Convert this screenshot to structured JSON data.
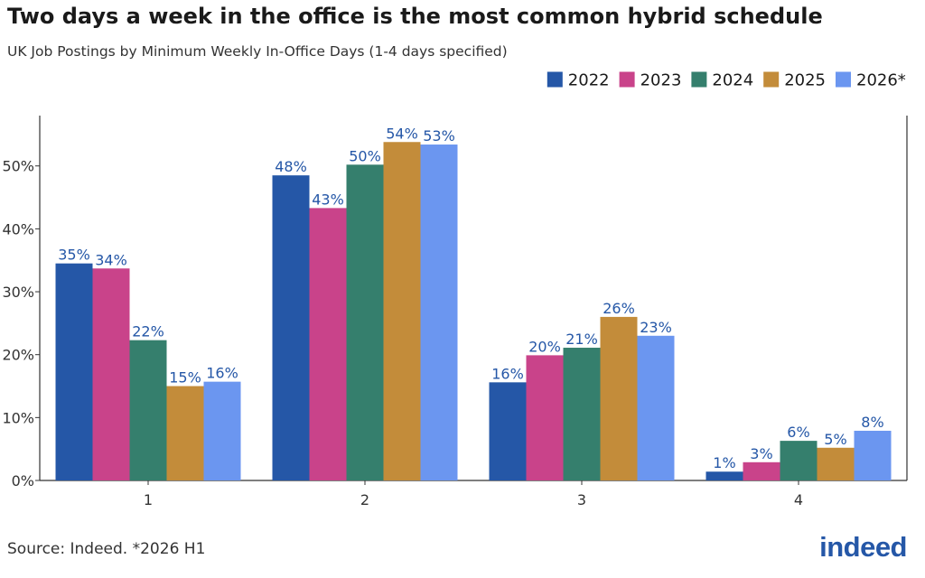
{
  "header": {
    "title": "Two days a week in the office is the most common hybrid schedule",
    "subtitle": "UK Job Postings by Minimum Weekly In-Office Days (1-4 days specified)"
  },
  "footer": {
    "source": "Source: Indeed. *2026 H1",
    "logo_text": "indeed"
  },
  "chart_data": {
    "type": "bar",
    "title": "Two days a week in the office is the most common hybrid schedule",
    "subtitle": "UK Job Postings by Minimum Weekly In-Office Days (1-4 days specified)",
    "xlabel": "",
    "ylabel": "",
    "categories": [
      "1",
      "2",
      "3",
      "4"
    ],
    "ylim": [
      0,
      58
    ],
    "yticks": [
      0,
      10,
      20,
      30,
      40,
      50
    ],
    "ytick_labels": [
      "0%",
      "10%",
      "20%",
      "30%",
      "40%",
      "50%"
    ],
    "grid": false,
    "legend_position": "top-right",
    "series": [
      {
        "name": "2022",
        "color": "#2557a7",
        "values": [
          34.5,
          48.5,
          15.6,
          1.4
        ],
        "labels": [
          "35%",
          "48%",
          "16%",
          "1%"
        ]
      },
      {
        "name": "2023",
        "color": "#c9438a",
        "values": [
          33.7,
          43.3,
          19.9,
          2.9
        ],
        "labels": [
          "34%",
          "43%",
          "20%",
          "3%"
        ]
      },
      {
        "name": "2024",
        "color": "#357f6d",
        "values": [
          22.3,
          50.2,
          21.1,
          6.3
        ],
        "labels": [
          "22%",
          "50%",
          "21%",
          "6%"
        ]
      },
      {
        "name": "2025",
        "color": "#c38c3a",
        "values": [
          15.0,
          53.8,
          26.0,
          5.2
        ],
        "labels": [
          "15%",
          "54%",
          "26%",
          "5%"
        ]
      },
      {
        "name": "2026*",
        "color": "#6b96f0",
        "values": [
          15.7,
          53.4,
          23.0,
          7.9
        ],
        "labels": [
          "16%",
          "53%",
          "23%",
          "8%"
        ]
      }
    ]
  }
}
